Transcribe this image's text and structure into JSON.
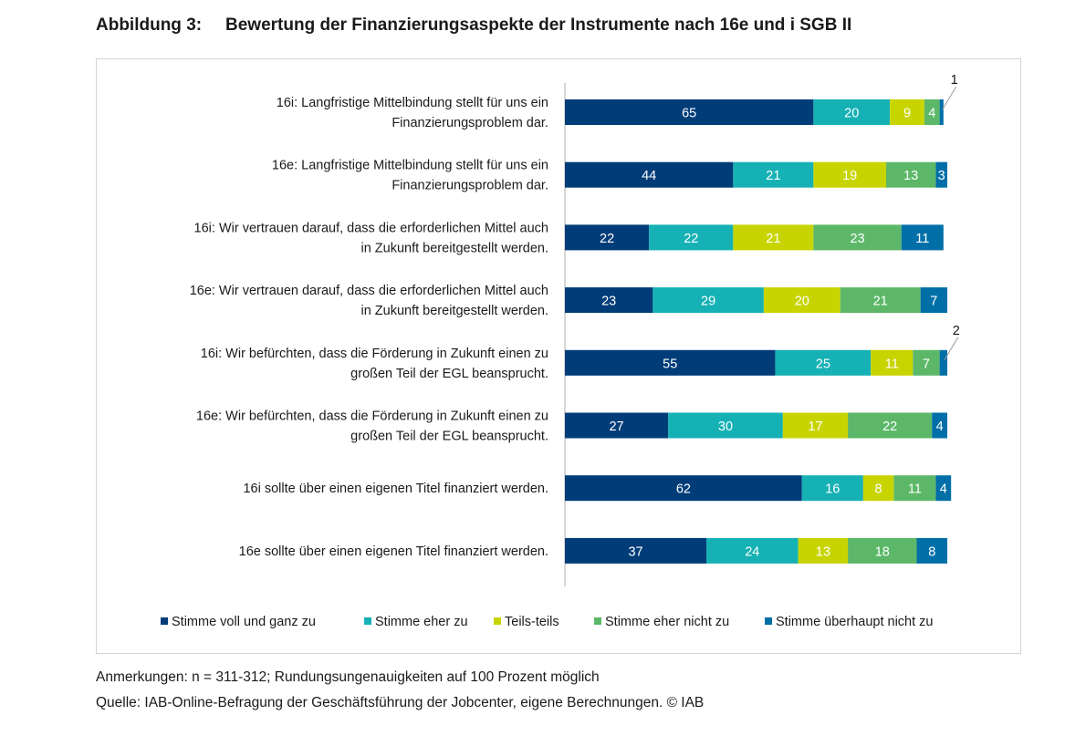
{
  "figure": {
    "number": "Abbildung 3:",
    "title": "Bewertung der Finanzierungsaspekte der Instrumente nach 16e und i SGB II"
  },
  "notes": {
    "anmerkungen": "Anmerkungen: n = 311-312; Rundungsungenauigkeiten auf 100 Prozent möglich",
    "quelle": "Quelle: IAB-Online-Befragung der Geschäftsführung der Jobcenter, eigene Berechnungen. © IAB"
  },
  "chart_data": {
    "type": "bar",
    "orientation": "horizontal",
    "stacked": true,
    "xlim": [
      0,
      100
    ],
    "grid": false,
    "legend_position": "bottom",
    "categories": [
      [
        "16i: Langfristige Mittelbindung stellt für uns ein",
        "Finanzierungsproblem dar."
      ],
      [
        "16e: Langfristige Mittelbindung stellt für uns ein",
        "Finanzierungsproblem dar."
      ],
      [
        "16i: Wir vertrauen darauf, dass die erforderlichen Mittel auch",
        "in Zukunft bereitgestellt werden."
      ],
      [
        "16e: Wir vertrauen darauf, dass die erforderlichen Mittel auch",
        "in Zukunft bereitgestellt werden."
      ],
      [
        "16i: Wir befürchten, dass die Förderung in Zukunft einen zu",
        "großen Teil der EGL beansprucht."
      ],
      [
        "16e: Wir befürchten, dass die Förderung in Zukunft einen zu",
        "großen Teil der EGL beansprucht."
      ],
      [
        "16i sollte über einen eigenen Titel finanziert werden."
      ],
      [
        "16e sollte über einen eigenen Titel finanziert werden."
      ]
    ],
    "series": [
      {
        "name": "Stimme voll und ganz zu",
        "color": "#003c78",
        "values": [
          65,
          44,
          22,
          23,
          55,
          27,
          62,
          37
        ]
      },
      {
        "name": "Stimme eher zu",
        "color": "#15b1b5",
        "values": [
          20,
          21,
          22,
          29,
          25,
          30,
          16,
          24
        ]
      },
      {
        "name": "Teils-teils",
        "color": "#c8d400",
        "values": [
          9,
          19,
          21,
          20,
          11,
          17,
          8,
          13
        ]
      },
      {
        "name": "Stimme eher nicht zu",
        "color": "#5cb868",
        "values": [
          4,
          13,
          23,
          21,
          7,
          22,
          11,
          18
        ]
      },
      {
        "name": "Stimme überhaupt nicht zu",
        "color": "#006fa8",
        "values": [
          1,
          3,
          11,
          7,
          2,
          4,
          4,
          8
        ]
      }
    ],
    "callouts": [
      {
        "row": 0,
        "series": 4,
        "label": "1"
      },
      {
        "row": 4,
        "series": 4,
        "label": "2"
      }
    ]
  }
}
